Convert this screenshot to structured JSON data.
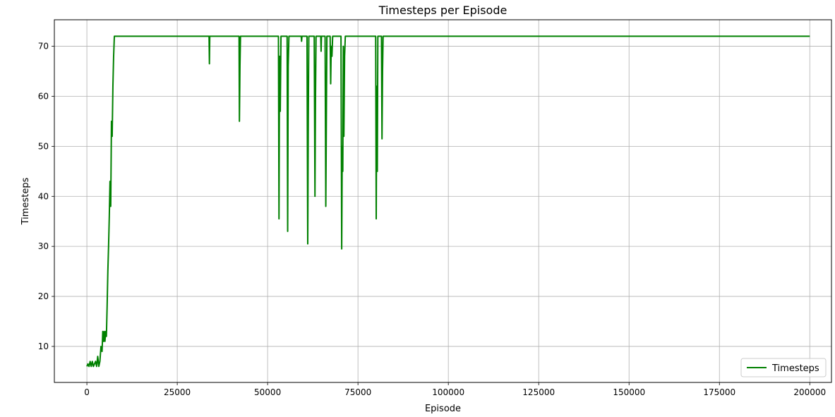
{
  "chart_data": {
    "type": "line",
    "title": "Timesteps per Episode",
    "xlabel": "Episode",
    "ylabel": "Timesteps",
    "xlim": [
      -9000,
      206000
    ],
    "ylim": [
      2.8,
      75.3
    ],
    "xticks": [
      0,
      25000,
      50000,
      75000,
      100000,
      125000,
      150000,
      175000,
      200000
    ],
    "yticks": [
      10,
      20,
      30,
      40,
      50,
      60,
      70
    ],
    "grid": true,
    "legend_position": "bottom-right",
    "series": [
      {
        "name": "Timesteps",
        "color": "#008000",
        "points": [
          [
            0,
            6
          ],
          [
            300,
            6.5
          ],
          [
            600,
            6
          ],
          [
            900,
            7
          ],
          [
            1200,
            6
          ],
          [
            1500,
            7
          ],
          [
            1800,
            6
          ],
          [
            2100,
            6.5
          ],
          [
            2400,
            7
          ],
          [
            2700,
            6
          ],
          [
            3000,
            8
          ],
          [
            3300,
            6
          ],
          [
            3600,
            7
          ],
          [
            3900,
            10
          ],
          [
            4200,
            9
          ],
          [
            4400,
            13
          ],
          [
            4600,
            11
          ],
          [
            4800,
            13
          ],
          [
            5000,
            11
          ],
          [
            5200,
            13
          ],
          [
            5400,
            12
          ],
          [
            5600,
            18
          ],
          [
            5800,
            25
          ],
          [
            6000,
            30
          ],
          [
            6200,
            36
          ],
          [
            6400,
            43
          ],
          [
            6600,
            38
          ],
          [
            6800,
            55
          ],
          [
            7000,
            52
          ],
          [
            7200,
            62
          ],
          [
            7400,
            68
          ],
          [
            7600,
            72
          ],
          [
            33800,
            72
          ],
          [
            33900,
            66.5
          ],
          [
            34000,
            72
          ],
          [
            42100,
            72
          ],
          [
            42200,
            55
          ],
          [
            42350,
            66
          ],
          [
            42500,
            72
          ],
          [
            53000,
            72
          ],
          [
            53150,
            35.5
          ],
          [
            53300,
            68
          ],
          [
            53500,
            57
          ],
          [
            53700,
            72
          ],
          [
            55400,
            72
          ],
          [
            55550,
            33
          ],
          [
            55700,
            66
          ],
          [
            55900,
            72
          ],
          [
            59300,
            72
          ],
          [
            59400,
            71
          ],
          [
            59500,
            72
          ],
          [
            60900,
            72
          ],
          [
            61100,
            30.5
          ],
          [
            61250,
            55
          ],
          [
            61400,
            72
          ],
          [
            62900,
            72
          ],
          [
            63100,
            40
          ],
          [
            63250,
            60
          ],
          [
            63400,
            72
          ],
          [
            64700,
            72
          ],
          [
            64800,
            69
          ],
          [
            64900,
            72
          ],
          [
            65900,
            72
          ],
          [
            66100,
            38
          ],
          [
            66250,
            55
          ],
          [
            66400,
            72
          ],
          [
            67300,
            72
          ],
          [
            67450,
            62.5
          ],
          [
            67600,
            70
          ],
          [
            67800,
            68
          ],
          [
            68000,
            72
          ],
          [
            70300,
            72
          ],
          [
            70500,
            29.5
          ],
          [
            70650,
            50
          ],
          [
            70800,
            45
          ],
          [
            70950,
            70
          ],
          [
            71100,
            52
          ],
          [
            71300,
            68
          ],
          [
            71500,
            72
          ],
          [
            79900,
            72
          ],
          [
            80050,
            35.5
          ],
          [
            80200,
            62
          ],
          [
            80350,
            45
          ],
          [
            80500,
            72
          ],
          [
            81500,
            72
          ],
          [
            81650,
            51.5
          ],
          [
            81800,
            65
          ],
          [
            81950,
            72
          ],
          [
            200000,
            72
          ]
        ]
      }
    ]
  }
}
